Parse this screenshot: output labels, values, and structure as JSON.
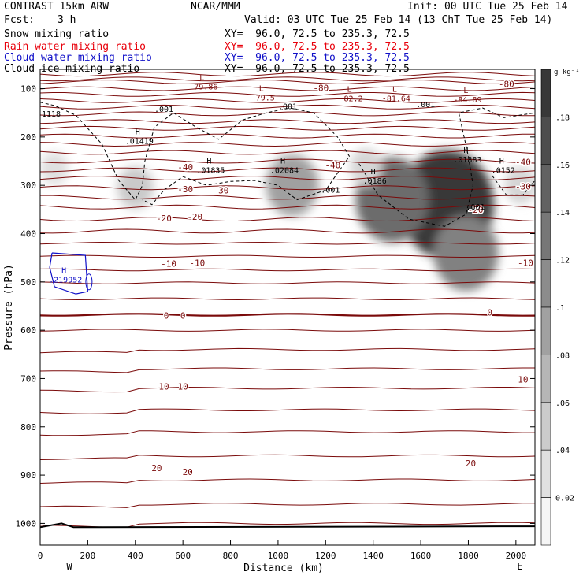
{
  "header": {
    "model": "CONTRAST 15km ARW",
    "org": "NCAR/MMM",
    "init": "Init: 00 UTC Tue 25 Feb 14",
    "fcst_label": "Fcst:",
    "fcst_value": "3 h",
    "valid": "Valid: 03 UTC Tue 25 Feb 14 (13 ChT Tue 25 Feb 14)",
    "fields": [
      {
        "name": "Snow mixing ratio",
        "xy": "XY=  96.0, 72.5 to 235.3, 72.5",
        "color": "#000000"
      },
      {
        "name": "Rain water mixing ratio",
        "xy": "XY=  96.0, 72.5 to 235.3, 72.5",
        "color": "#e8000b"
      },
      {
        "name": "Cloud water mixing ratio",
        "xy": "XY=  96.0, 72.5 to 235.3, 72.5",
        "color": "#1010c8"
      },
      {
        "name": "Cloud ice mixing ratio",
        "xy": "XY=  96.0, 72.5 to 235.3, 72.5",
        "color": "#000000"
      }
    ]
  },
  "colorbar": {
    "unit": "g kg⁻¹",
    "ticks": [
      "0.02",
      ".04",
      ".06",
      ".08",
      ".1",
      ".12",
      ".14",
      ".16",
      ".18"
    ]
  },
  "chart_data": {
    "type": "contour",
    "xlabel": "Distance (km)",
    "ylabel": "Pressure (hPa)",
    "xlim": [
      0,
      2080
    ],
    "ylim": [
      1045,
      60
    ],
    "x_ticks": [
      "0",
      "200",
      "400",
      "600",
      "800",
      "1000",
      "1200",
      "1400",
      "1600",
      "1800",
      "2000"
    ],
    "y_ticks": [
      "100",
      "200",
      "300",
      "400",
      "500",
      "600",
      "700",
      "800",
      "900",
      "1000"
    ],
    "x_end_labels": {
      "left": "W",
      "right": "E"
    },
    "temperature_contour_labels": [
      {
        "text": "-80",
        "x": 1960,
        "p": 90
      },
      {
        "text": "-80",
        "x": 1180,
        "p": 98
      },
      {
        "text": "-40",
        "x": 610,
        "p": 262
      },
      {
        "text": "-40",
        "x": 1230,
        "p": 258
      },
      {
        "text": "-40",
        "x": 2030,
        "p": 252
      },
      {
        "text": "-30",
        "x": 610,
        "p": 308
      },
      {
        "text": "-30",
        "x": 760,
        "p": 310
      },
      {
        "text": "-30",
        "x": 2030,
        "p": 302
      },
      {
        "text": "-20",
        "x": 520,
        "p": 368
      },
      {
        "text": "-20",
        "x": 650,
        "p": 365
      },
      {
        "text": "-20",
        "x": 1830,
        "p": 350
      },
      {
        "text": "-10",
        "x": 540,
        "p": 462
      },
      {
        "text": "-10",
        "x": 660,
        "p": 460
      },
      {
        "text": "-10",
        "x": 2040,
        "p": 460
      },
      {
        "text": "0",
        "x": 530,
        "p": 570
      },
      {
        "text": "0",
        "x": 600,
        "p": 570
      },
      {
        "text": "0",
        "x": 1890,
        "p": 563
      },
      {
        "text": "10",
        "x": 520,
        "p": 716
      },
      {
        "text": "10",
        "x": 600,
        "p": 716
      },
      {
        "text": "10",
        "x": 2030,
        "p": 702
      },
      {
        "text": "20",
        "x": 490,
        "p": 885
      },
      {
        "text": "20",
        "x": 620,
        "p": 893
      },
      {
        "text": "20",
        "x": 1810,
        "p": 875
      }
    ],
    "extrema": [
      {
        "type": "L",
        "value": "-79.86",
        "x": 680,
        "p": 85
      },
      {
        "type": "L",
        "value": "-79.5",
        "x": 930,
        "p": 108
      },
      {
        "type": "L",
        "value": "-82.2",
        "x": 1300,
        "p": 110
      },
      {
        "type": "L",
        "value": "-81.64",
        "x": 1490,
        "p": 110
      },
      {
        "type": "L",
        "value": "-84.89",
        "x": 1790,
        "p": 112
      },
      {
        "type": "H",
        "value": ".01419",
        "x": 410,
        "p": 198
      },
      {
        "type": "H",
        "value": ".01835",
        "x": 710,
        "p": 258
      },
      {
        "type": "H",
        "value": ".02084",
        "x": 1020,
        "p": 258
      },
      {
        "type": "H",
        "value": ".0186",
        "x": 1400,
        "p": 280
      },
      {
        "type": "H",
        "value": ".01883",
        "x": 1790,
        "p": 236
      },
      {
        "type": "H",
        "value": ".0152",
        "x": 1940,
        "p": 258
      },
      {
        "type": "H",
        "value": ".219952",
        "x": 100,
        "p": 485
      }
    ],
    "cloud_ice_labels": [
      {
        "text": ".001",
        "x": 520,
        "p": 148
      },
      {
        "text": ".001",
        "x": 1040,
        "p": 142
      },
      {
        "text": ".001",
        "x": 1620,
        "p": 138
      },
      {
        "text": ".001",
        "x": 1220,
        "p": 315
      },
      {
        "text": ".001",
        "x": 1830,
        "p": 350
      }
    ],
    "surface_label": {
      "text": "1118",
      "x": 0,
      "p": 158
    },
    "snow_max_g_per_kg": 0.19,
    "snow_centers": [
      {
        "x": 1710,
        "p": 340,
        "v": 0.19
      },
      {
        "x": 1790,
        "p": 440,
        "v": 0.12
      },
      {
        "x": 1480,
        "p": 330,
        "v": 0.14
      },
      {
        "x": 1060,
        "p": 300,
        "v": 0.09
      },
      {
        "x": 400,
        "p": 305,
        "v": 0.05
      },
      {
        "x": 1370,
        "p": 262,
        "v": 0.04
      },
      {
        "x": 60,
        "p": 265,
        "v": 0.03
      },
      {
        "x": 2020,
        "p": 300,
        "v": 0.04
      }
    ]
  }
}
